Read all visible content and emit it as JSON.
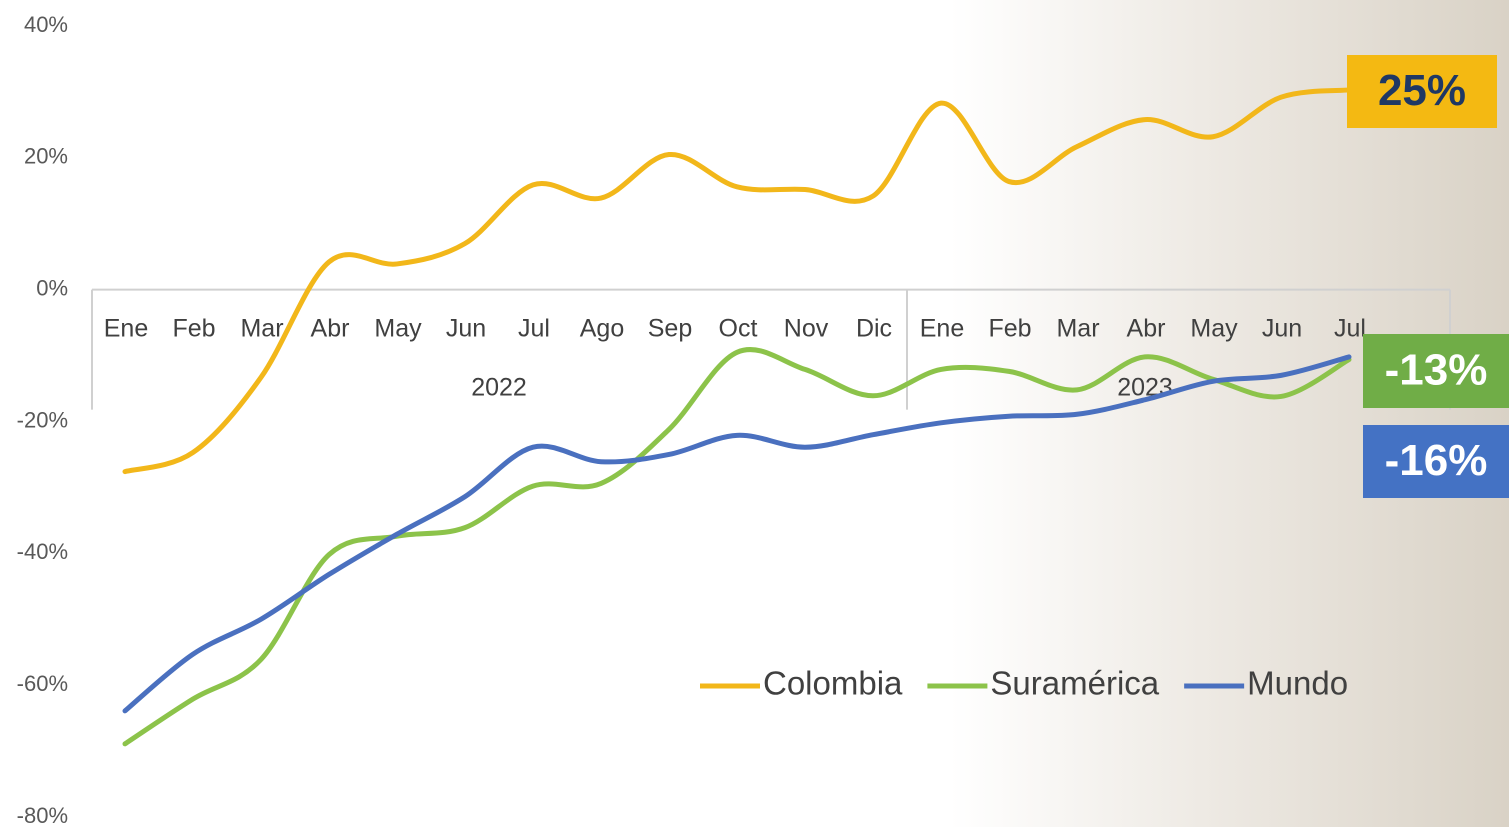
{
  "chart_data": {
    "type": "line",
    "category_groups": [
      {
        "name": "2022",
        "categories": [
          "Ene",
          "Feb",
          "Mar",
          "Abr",
          "May",
          "Jun",
          "Jul",
          "Ago",
          "Sep",
          "Oct",
          "Nov",
          "Dic"
        ]
      },
      {
        "name": "2023",
        "categories": [
          "Ene",
          "Feb",
          "Mar",
          "Abr",
          "May",
          "Jun",
          "Jul"
        ]
      }
    ],
    "series": [
      {
        "name": "Colombia",
        "color": "#f2b71a",
        "values": [
          -27.6,
          -24.7,
          -13.3,
          4.2,
          3.9,
          7.0,
          15.9,
          13.9,
          20.5,
          15.6,
          15.2,
          14.2,
          28.3,
          16.4,
          21.7,
          25.8,
          23.2,
          29.2,
          30.3
        ]
      },
      {
        "name": "Suramérica",
        "color": "#8cc34a",
        "values": [
          -68.9,
          -62.1,
          -56.1,
          -40.2,
          -37.4,
          -36.1,
          -29.8,
          -29.4,
          -21.2,
          -9.5,
          -12.1,
          -16.1,
          -12.1,
          -12.4,
          -15.2,
          -10.2,
          -13.6,
          -16.2,
          -10.6
        ]
      },
      {
        "name": "Mundo",
        "color": "#4a70bf",
        "values": [
          -63.9,
          -55.3,
          -50.0,
          -43.2,
          -37.1,
          -31.4,
          -23.9,
          -26.1,
          -25.0,
          -22.1,
          -23.9,
          -22.0,
          -20.2,
          -19.2,
          -18.9,
          -16.7,
          -13.9,
          -13.0,
          -10.2
        ]
      }
    ],
    "ylim": [
      -80,
      40
    ],
    "yticks": [
      {
        "value": -80,
        "label": "-80%"
      },
      {
        "value": -60,
        "label": "-60%"
      },
      {
        "value": -40,
        "label": "-40%"
      },
      {
        "value": -20,
        "label": "-20%"
      },
      {
        "value": 0,
        "label": "0%"
      },
      {
        "value": 20,
        "label": "20%"
      },
      {
        "value": 40,
        "label": "40%"
      }
    ],
    "annotations": [
      {
        "text": "25%",
        "color": "#f4b912",
        "text_color": "#1f3864"
      },
      {
        "text": "-13%",
        "color": "#70ad47",
        "text_color": "#ffffff"
      },
      {
        "text": "-16%",
        "color": "#4472c4",
        "text_color": "#ffffff"
      }
    ]
  }
}
